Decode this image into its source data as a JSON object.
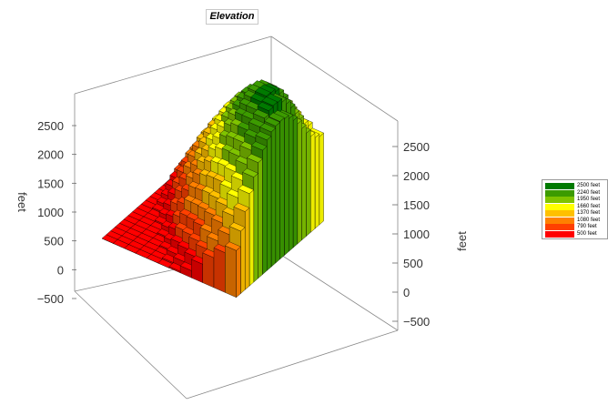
{
  "chart_data": {
    "type": "surface3d",
    "title": "Elevation",
    "zlabel": "feet",
    "zlim": [
      -500,
      2500
    ],
    "ticks_left": [
      "2500",
      "2000",
      "1500",
      "1000",
      "500",
      "0",
      "-500"
    ],
    "ticks_right": [
      "2500",
      "2000",
      "1500",
      "1000",
      "500",
      "0",
      "-500"
    ],
    "legend": {
      "placement": "right",
      "entries": [
        {
          "label": "2500 feet",
          "color": "#007a00"
        },
        {
          "label": "2240 feet",
          "color": "#3c9b00"
        },
        {
          "label": "1950 feet",
          "color": "#7fc300"
        },
        {
          "label": "1660 feet",
          "color": "#ffff00"
        },
        {
          "label": "1370 feet",
          "color": "#ffc000"
        },
        {
          "label": "1080 feet",
          "color": "#ff8000"
        },
        {
          "label": "790 feet",
          "color": "#ff4000"
        },
        {
          "label": "500 feet",
          "color": "#ff0000"
        }
      ]
    },
    "surface_rows": [
      [
        500,
        500,
        500,
        500,
        500,
        500,
        500,
        500,
        500,
        500,
        500,
        500,
        500,
        500,
        500,
        500,
        500,
        500,
        500,
        500
      ],
      [
        500,
        500,
        500,
        500,
        500,
        500,
        500,
        500,
        500,
        520,
        560,
        620,
        700,
        760,
        800,
        820,
        830,
        830,
        820,
        800
      ],
      [
        500,
        500,
        500,
        500,
        500,
        500,
        500,
        520,
        580,
        660,
        760,
        860,
        960,
        1040,
        1090,
        1110,
        1110,
        1090,
        1060,
        1020
      ],
      [
        500,
        500,
        500,
        500,
        500,
        520,
        580,
        680,
        800,
        920,
        1040,
        1150,
        1250,
        1330,
        1380,
        1400,
        1390,
        1360,
        1320,
        1270
      ],
      [
        500,
        500,
        500,
        520,
        580,
        680,
        800,
        930,
        1060,
        1180,
        1300,
        1410,
        1510,
        1590,
        1640,
        1660,
        1650,
        1620,
        1580,
        1530
      ],
      [
        500,
        520,
        580,
        680,
        800,
        940,
        1080,
        1220,
        1350,
        1470,
        1580,
        1680,
        1770,
        1840,
        1890,
        1910,
        1900,
        1870,
        1830,
        1790
      ],
      [
        520,
        600,
        720,
        860,
        1010,
        1160,
        1310,
        1460,
        1600,
        1720,
        1830,
        1930,
        2010,
        2070,
        2110,
        2120,
        2100,
        2060,
        2010,
        1950
      ],
      [
        600,
        740,
        900,
        1060,
        1230,
        1400,
        1560,
        1710,
        1850,
        1970,
        2080,
        2170,
        2240,
        2290,
        2310,
        2300,
        2260,
        2190,
        2100,
        2000
      ],
      [
        760,
        920,
        1100,
        1280,
        1460,
        1640,
        1800,
        1950,
        2080,
        2200,
        2300,
        2380,
        2440,
        2470,
        2470,
        2430,
        2350,
        2240,
        2110,
        1980
      ],
      [
        920,
        1100,
        1300,
        1490,
        1680,
        1860,
        2020,
        2160,
        2280,
        2380,
        2460,
        2520,
        2550,
        2540,
        2500,
        2420,
        2300,
        2160,
        2020,
        1900
      ],
      [
        1060,
        1260,
        1470,
        1670,
        1860,
        2030,
        2180,
        2300,
        2400,
        2470,
        2520,
        2540,
        2530,
        2480,
        2400,
        2290,
        2150,
        2020,
        1900,
        1820
      ],
      [
        1160,
        1380,
        1600,
        1800,
        1980,
        2130,
        2250,
        2340,
        2400,
        2430,
        2440,
        2420,
        2370,
        2290,
        2190,
        2070,
        1950,
        1850,
        1780,
        1740
      ]
    ]
  }
}
